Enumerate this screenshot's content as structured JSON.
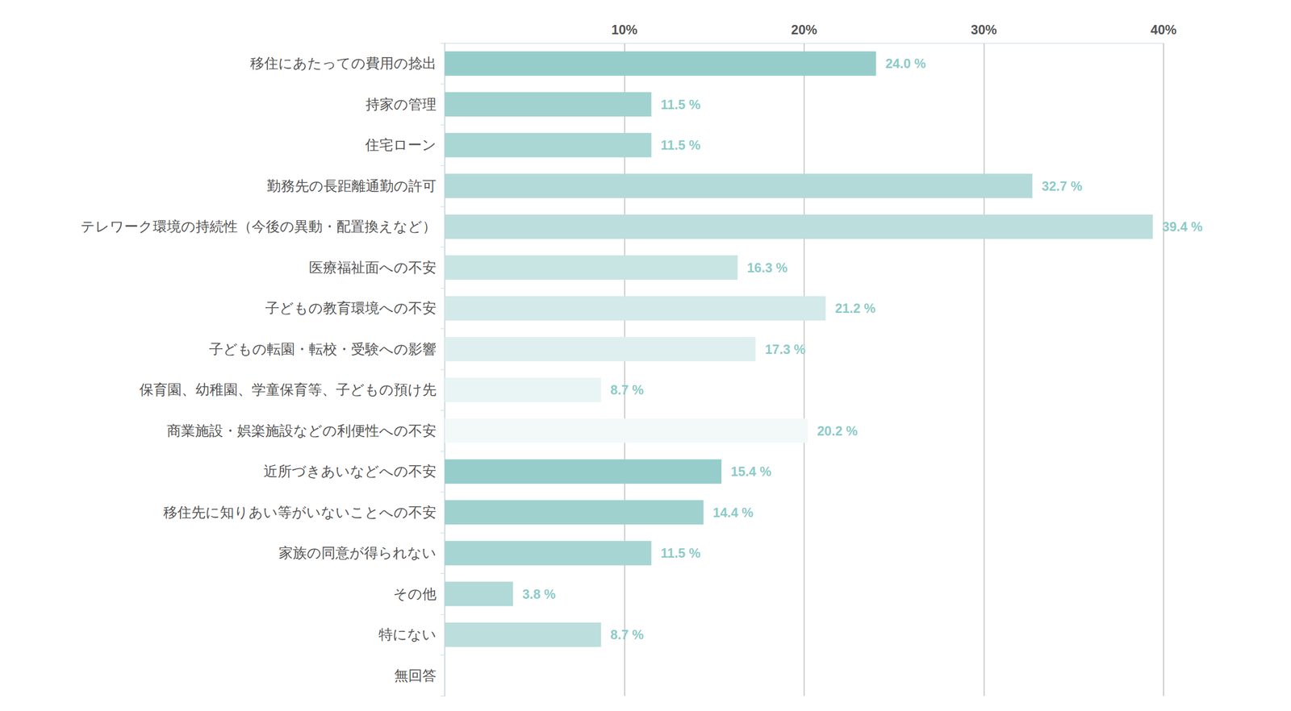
{
  "chart_data": {
    "type": "bar",
    "orientation": "horizontal",
    "categories": [
      "移住にあたっての費用の捻出",
      "持家の管理",
      "住宅ローン",
      "勤務先の長距離通勤の許可",
      "テレワーク環境の持続性（今後の異動・配置換えなど）",
      "医療福祉面への不安",
      "子どもの教育環境への不安",
      "子どもの転園・転校・受験への影響",
      "保育園、幼稚園、学童保育等、子どもの預け先",
      "商業施設・娯楽施設などの利便性への不安",
      "近所づきあいなどへの不安",
      "移住先に知りあい等がいないことへの不安",
      "家族の同意が得られない",
      "その他",
      "特にない",
      "無回答"
    ],
    "values": [
      24.0,
      11.5,
      11.5,
      32.7,
      39.4,
      16.3,
      21.2,
      17.3,
      8.7,
      20.2,
      15.4,
      14.4,
      11.5,
      3.8,
      8.7,
      null
    ],
    "value_labels": [
      "24.0 %",
      "11.5 %",
      "11.5 %",
      "32.7 %",
      "39.4 %",
      "16.3 %",
      "21.2 %",
      "17.3 %",
      "8.7 %",
      "20.2 %",
      "15.4 %",
      "14.4 %",
      "11.5 %",
      "3.8 %",
      "8.7 %",
      null
    ],
    "colors": [
      "#96cdcb",
      "#a1d2d0",
      "#aad6d4",
      "#b3dad9",
      "#bcdedd",
      "#c8e4e3",
      "#d4e9e9",
      "#dfefef",
      "#e9f4f4",
      "#f3f9f9",
      "#96cdcb",
      "#9fd1cf",
      "#a7d5d3",
      "#b1d9d8",
      "#bcdedd",
      "#c8e4e3"
    ],
    "xlim": [
      0,
      40
    ],
    "xticks": [
      {
        "value": 10,
        "label": "10%"
      },
      {
        "value": 20,
        "label": "20%"
      },
      {
        "value": 30,
        "label": "30%"
      },
      {
        "value": 40,
        "label": "40%"
      }
    ],
    "grid": true,
    "data_labels": true
  }
}
